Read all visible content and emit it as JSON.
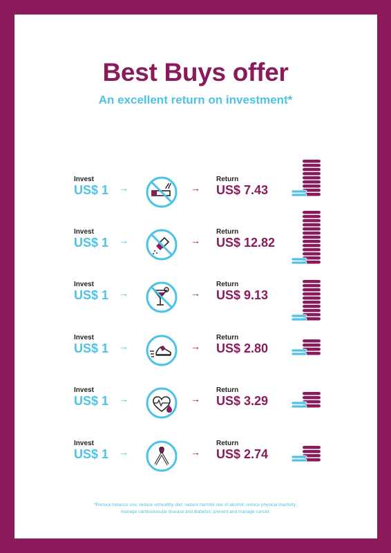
{
  "title": "Best Buys offer",
  "subtitle": "An excellent return on investment*",
  "colors": {
    "frame": "#8a1a5c",
    "accent": "#4cc3e6",
    "text": "#222222"
  },
  "rows": [
    {
      "invest_label": "Invest",
      "invest_amount": "US$ 1",
      "icon": "no-smoking-icon",
      "return_label": "Return",
      "return_amount": "US$ 7.43",
      "coin_stack_level": 7.43
    },
    {
      "invest_label": "Invest",
      "invest_amount": "US$ 1",
      "icon": "no-salt-icon",
      "return_label": "Return",
      "return_amount": "US$ 12.82",
      "coin_stack_level": 12.82
    },
    {
      "invest_label": "Invest",
      "invest_amount": "US$ 1",
      "icon": "no-alcohol-icon",
      "return_label": "Return",
      "return_amount": "US$ 9.13",
      "coin_stack_level": 9.13
    },
    {
      "invest_label": "Invest",
      "invest_amount": "US$ 1",
      "icon": "running-shoe-icon",
      "return_label": "Return",
      "return_amount": "US$ 2.80",
      "coin_stack_level": 2.8
    },
    {
      "invest_label": "Invest",
      "invest_amount": "US$ 1",
      "icon": "heart-blood-drop-icon",
      "return_label": "Return",
      "return_amount": "US$ 3.29",
      "coin_stack_level": 3.29
    },
    {
      "invest_label": "Invest",
      "invest_amount": "US$ 1",
      "icon": "cancer-ribbon-icon",
      "return_label": "Return",
      "return_amount": "US$ 2.74",
      "coin_stack_level": 2.74
    }
  ],
  "footnote_line1": "*Reduce tobacco use; reduce unhealthy diet; reduce harmful use of alcohol; reduce physical inactivity;",
  "footnote_line2": "manage cardiovascular disease and diabetes; prevent and manage cancer."
}
